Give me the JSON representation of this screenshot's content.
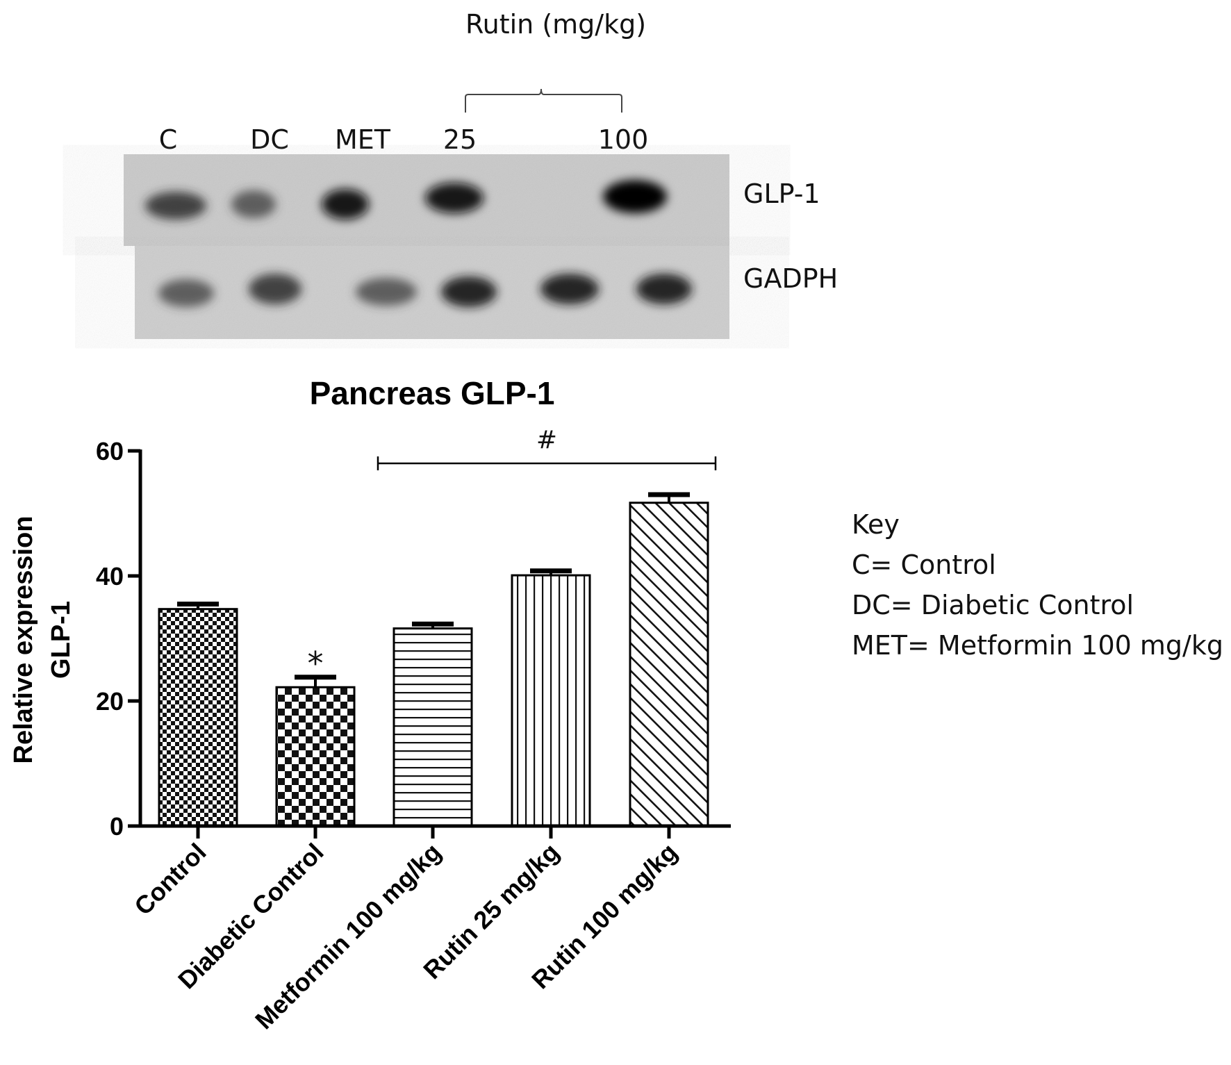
{
  "blot": {
    "bracket_label": "Rutin (mg/kg)",
    "lane_labels": [
      "C",
      "DC",
      "MET",
      "25",
      "100"
    ],
    "row_labels": [
      "GLP-1",
      "GADPH"
    ]
  },
  "key": {
    "heading": "Key",
    "entries": [
      "C= Control",
      "DC= Diabetic Control",
      "MET= Metformin 100 mg/kg"
    ]
  },
  "chart_data": {
    "type": "bar",
    "title": "Pancreas GLP-1",
    "xlabel": "",
    "ylabel": [
      "Relative expression",
      "GLP-1"
    ],
    "ylim": [
      0,
      60
    ],
    "yticks": [
      0,
      20,
      40,
      60
    ],
    "categories": [
      "Control",
      "Diabetic Control",
      "Metformin 100 mg/kg",
      "Rutin 25 mg/kg",
      "Rutin 100 mg/kg"
    ],
    "values": [
      34.7,
      22.2,
      31.6,
      40.1,
      51.7
    ],
    "errors": [
      0.8,
      1.6,
      0.7,
      0.7,
      1.3
    ],
    "patterns": [
      "checker-small",
      "checker-large",
      "horizontal-lines",
      "vertical-lines",
      "diagonal-lines"
    ],
    "annotations": [
      {
        "text": "*",
        "category": "Diabetic Control"
      },
      {
        "text": "#",
        "from": "Metformin 100 mg/kg",
        "to": "Rutin 100 mg/kg",
        "y": 58
      }
    ],
    "grid": false,
    "legend": "none"
  }
}
